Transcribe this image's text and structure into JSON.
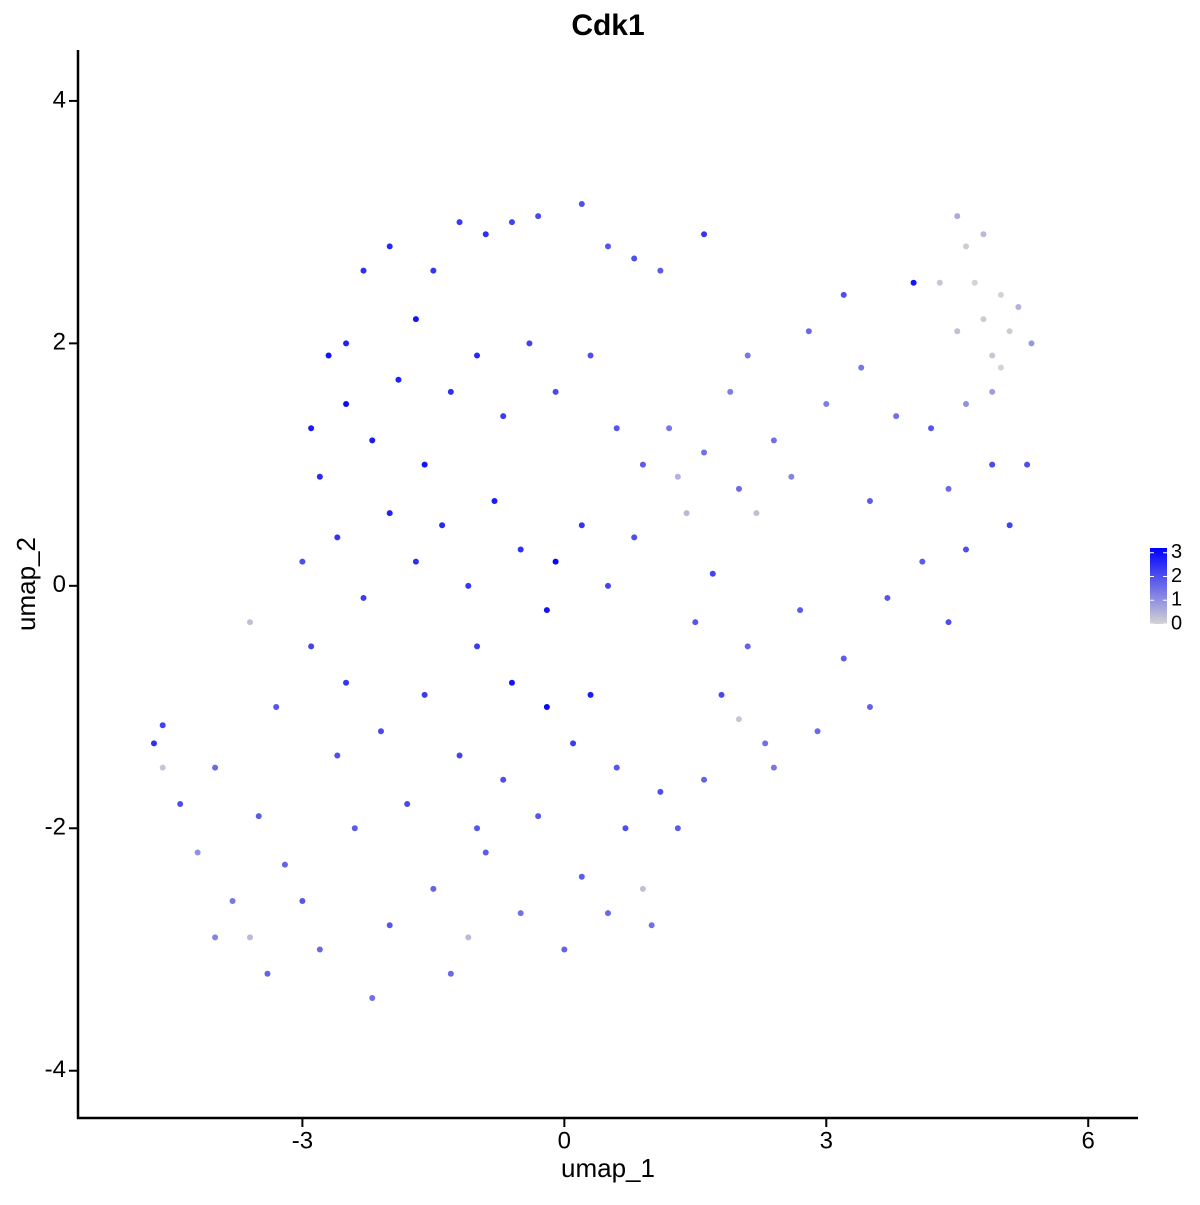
{
  "chart_data": {
    "type": "scatter",
    "title": "Cdk1",
    "x_label": "umap_1",
    "y_label": "umap_2",
    "xlim": [
      -5.57,
      6.57
    ],
    "xticks": [
      -3,
      0,
      3,
      6
    ],
    "ylim": [
      -4.39,
      4.42
    ],
    "yticks": [
      -4,
      -2,
      0,
      2,
      4
    ],
    "colors": [
      "#d3d3d3",
      "#0000ff"
    ],
    "color_lim": [
      0,
      3.2
    ],
    "color_ticks": [
      0,
      1,
      2,
      3
    ],
    "x": [
      -2.9,
      -2.7,
      -2.5,
      -2.3,
      -2.0,
      -1.7,
      -1.5,
      -1.2,
      -0.9,
      -0.6,
      -0.3,
      0.2,
      0.5,
      0.8,
      1.1,
      1.6,
      -2.8,
      -2.5,
      -2.2,
      -1.9,
      -1.6,
      -1.3,
      -1.0,
      -0.7,
      -0.4,
      -0.1,
      0.3,
      0.6,
      0.9,
      -2.6,
      -2.3,
      -2.0,
      -1.7,
      -1.4,
      -1.1,
      -0.8,
      -0.5,
      -0.2,
      -0.1,
      0.2,
      0.5,
      0.8,
      -0.6,
      -0.2,
      0.3,
      -1.0,
      -3.0,
      -3.6,
      -4.7,
      -4.6,
      -4.6,
      -4.4,
      -4.2,
      -4.0,
      -3.8,
      -3.6,
      -3.5,
      -3.2,
      -3.0,
      -2.8,
      -2.6,
      -2.4,
      -2.2,
      -2.0,
      -1.8,
      -1.5,
      -1.3,
      -1.1,
      -0.9,
      -0.7,
      -0.5,
      -0.3,
      0.0,
      0.2,
      0.5,
      0.7,
      0.9,
      1.0,
      -3.3,
      -2.9,
      -2.5,
      -2.1,
      -1.6,
      -1.2,
      0.1,
      0.6,
      1.1,
      -4.0,
      -3.4,
      -1.0,
      1.2,
      1.3,
      1.4,
      1.6,
      1.7,
      1.9,
      2.0,
      2.2,
      2.1,
      2.4,
      2.6,
      2.8,
      3.0,
      3.2,
      3.4,
      3.5,
      3.8,
      4.0,
      4.2,
      4.4,
      4.6,
      4.9,
      5.1,
      5.3,
      1.5,
      1.8,
      2.1,
      2.3,
      2.0,
      2.7,
      2.9,
      3.2,
      3.5,
      3.7,
      4.1,
      4.4,
      1.3,
      1.6,
      2.4,
      4.3,
      4.5,
      4.6,
      4.7,
      4.8,
      4.9,
      5.0,
      5.1,
      5.2,
      5.35,
      4.5,
      4.8,
      5.0,
      4.6,
      4.9
    ],
    "y": [
      1.3,
      1.9,
      2.0,
      2.6,
      2.8,
      2.2,
      2.6,
      3.0,
      2.9,
      3.0,
      3.05,
      3.15,
      2.8,
      2.7,
      2.6,
      2.9,
      0.9,
      1.5,
      1.2,
      1.7,
      1.0,
      1.6,
      1.9,
      1.4,
      2.0,
      1.6,
      1.9,
      1.3,
      1.0,
      0.4,
      -0.1,
      0.6,
      0.2,
      0.5,
      0.0,
      0.7,
      0.3,
      -0.2,
      0.2,
      0.5,
      0.0,
      0.4,
      -0.8,
      -1.0,
      -0.9,
      -0.5,
      0.2,
      -0.3,
      -1.3,
      -1.15,
      -1.5,
      -1.8,
      -2.2,
      -1.5,
      -2.6,
      -2.9,
      -1.9,
      -2.3,
      -2.6,
      -3.0,
      -1.4,
      -2.0,
      -3.4,
      -2.8,
      -1.8,
      -2.5,
      -3.2,
      -2.9,
      -2.2,
      -1.6,
      -2.7,
      -1.9,
      -3.0,
      -2.4,
      -2.7,
      -2.0,
      -2.5,
      -2.8,
      -1.0,
      -0.5,
      -0.8,
      -1.2,
      -0.9,
      -1.4,
      -1.3,
      -1.5,
      -1.7,
      -2.9,
      -3.2,
      -2.0,
      1.3,
      0.9,
      0.6,
      1.1,
      0.1,
      1.6,
      0.8,
      0.6,
      1.9,
      1.2,
      0.9,
      2.1,
      1.5,
      2.4,
      1.8,
      0.7,
      1.4,
      2.5,
      1.3,
      0.8,
      0.3,
      1.0,
      0.5,
      1.0,
      -0.3,
      -0.9,
      -0.5,
      -1.3,
      -1.1,
      -0.2,
      -1.2,
      -0.6,
      -1.0,
      -0.1,
      0.2,
      -0.3,
      -2.0,
      -1.6,
      -1.5,
      2.5,
      3.05,
      2.8,
      2.5,
      2.2,
      1.9,
      2.4,
      2.1,
      2.3,
      2.0,
      2.1,
      2.9,
      1.8,
      1.5,
      1.6
    ],
    "values": [
      2.8,
      2.9,
      2.7,
      2.5,
      2.6,
      2.9,
      2.4,
      2.3,
      2.5,
      2.2,
      2.1,
      2.0,
      1.9,
      2.0,
      1.8,
      2.4,
      2.6,
      3.0,
      2.8,
      2.7,
      2.9,
      2.5,
      2.6,
      2.3,
      2.2,
      2.1,
      2.0,
      1.9,
      1.8,
      2.4,
      2.3,
      2.7,
      2.5,
      2.6,
      2.4,
      2.8,
      2.5,
      2.9,
      3.1,
      2.4,
      2.2,
      2.0,
      2.9,
      3.1,
      2.8,
      2.3,
      2.0,
      0.3,
      2.5,
      2.2,
      0.2,
      2.0,
      1.0,
      1.6,
      1.4,
      0.4,
      1.8,
      1.7,
      1.9,
      1.6,
      2.0,
      1.8,
      1.5,
      1.9,
      2.1,
      1.7,
      1.6,
      0.4,
      1.8,
      2.0,
      1.5,
      1.9,
      1.7,
      1.8,
      1.6,
      2.0,
      0.3,
      1.5,
      1.9,
      2.2,
      2.4,
      2.1,
      2.3,
      2.2,
      2.3,
      1.9,
      2.0,
      1.2,
      1.7,
      1.9,
      1.4,
      0.5,
      0.4,
      1.5,
      2.2,
      1.3,
      1.6,
      0.3,
      1.4,
      1.5,
      1.2,
      1.6,
      1.3,
      2.0,
      1.4,
      1.8,
      1.5,
      2.9,
      1.9,
      1.6,
      2.0,
      2.1,
      2.2,
      2.0,
      1.9,
      2.1,
      1.7,
      1.5,
      0.2,
      1.8,
      1.6,
      1.8,
      1.7,
      1.9,
      1.8,
      2.0,
      1.8,
      1.7,
      1.4,
      0.2,
      0.6,
      0.1,
      0.0,
      0.1,
      0.2,
      0.0,
      0.1,
      0.5,
      0.9,
      0.3,
      0.4,
      0.0,
      1.0,
      0.8
    ]
  }
}
